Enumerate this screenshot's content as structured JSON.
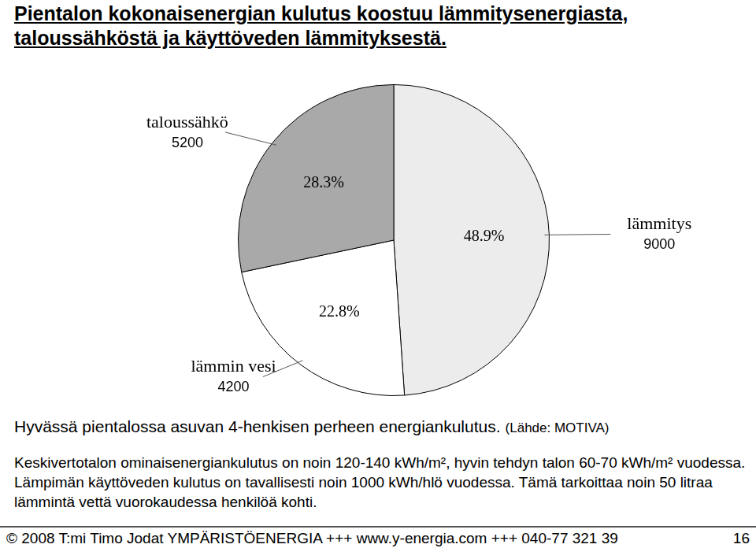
{
  "chart_data": {
    "type": "pie",
    "categories": [
      "lämmitys",
      "lämmin vesi",
      "taloussähkö"
    ],
    "values": [
      48.9,
      22.8,
      28.3
    ],
    "value_labels": [
      "48.9%",
      "22.8%",
      "28.3%"
    ],
    "amounts": [
      9000,
      4200,
      5200
    ],
    "colors": [
      "#ececec",
      "#ffffff",
      "#a9a9a9"
    ],
    "data_labels": true
  },
  "heading": [
    "Pientalon kokonaisenergian kulutus koostuu lämmitysenergiasta,",
    "taloussähköstä ja käyttöveden lämmityksestä."
  ],
  "caption": "Hyvässä pientalossa asuvan 4-henkisen perheen energiankulutus.",
  "source": "(Lähde: MOTIVA)",
  "text": "Keskivertotalon ominaisenergiankulutus on noin 120-140 kWh/m², hyvin tehdyn talon 60-70 kWh/m² vuodessa. Lämpimän käyttöveden kulutus on tavallisesti noin 1000 kWh/hlö vuodessa. Tämä tarkoittaa noin 50 litraa lämmintä vettä vuorokaudessa henkilöä kohti.",
  "footer": "© 2008 T:mi Timo Jodat YMPÄRISTÖENERGIA +++ www.y-energia.com +++ 040-77 321 39",
  "page_number": 16
}
